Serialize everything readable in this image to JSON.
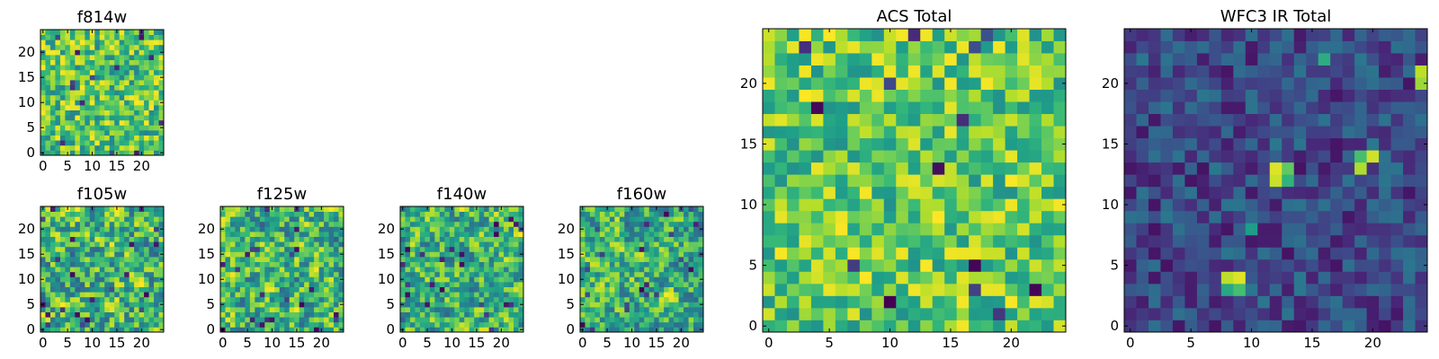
{
  "chart_data": [
    {
      "type": "heatmap",
      "title": "f814w",
      "grid_size": 25,
      "xlim": [
        0,
        24
      ],
      "ylim": [
        0,
        24
      ],
      "x_ticks": [
        "0",
        "5",
        "10",
        "15",
        "20"
      ],
      "y_ticks": [
        "0",
        "5",
        "10",
        "15",
        "20"
      ],
      "colormap": "viridis",
      "style": "noise",
      "seed": 11,
      "value_range": [
        0.45,
        1.0
      ]
    },
    {
      "type": "heatmap",
      "title": "f105w",
      "grid_size": 25,
      "xlim": [
        0,
        24
      ],
      "ylim": [
        0,
        24
      ],
      "x_ticks": [
        "0",
        "5",
        "10",
        "15",
        "20"
      ],
      "y_ticks": [
        "0",
        "5",
        "10",
        "15",
        "20"
      ],
      "colormap": "viridis",
      "style": "smooth",
      "seed": 23,
      "value_range": [
        0.3,
        1.0
      ]
    },
    {
      "type": "heatmap",
      "title": "f125w",
      "grid_size": 25,
      "xlim": [
        0,
        24
      ],
      "ylim": [
        0,
        24
      ],
      "x_ticks": [
        "0",
        "5",
        "10",
        "15",
        "20"
      ],
      "y_ticks": [
        "0",
        "5",
        "10",
        "15",
        "20"
      ],
      "colormap": "viridis",
      "style": "smooth",
      "seed": 37,
      "value_range": [
        0.3,
        1.0
      ]
    },
    {
      "type": "heatmap",
      "title": "f140w",
      "grid_size": 25,
      "xlim": [
        0,
        24
      ],
      "ylim": [
        0,
        24
      ],
      "x_ticks": [
        "0",
        "5",
        "10",
        "15",
        "20"
      ],
      "y_ticks": [
        "0",
        "5",
        "10",
        "15",
        "20"
      ],
      "colormap": "viridis",
      "style": "smooth",
      "seed": 41,
      "value_range": [
        0.3,
        1.0
      ]
    },
    {
      "type": "heatmap",
      "title": "f160w",
      "grid_size": 25,
      "xlim": [
        0,
        24
      ],
      "ylim": [
        0,
        24
      ],
      "x_ticks": [
        "0",
        "5",
        "10",
        "15",
        "20"
      ],
      "y_ticks": [
        "0",
        "5",
        "10",
        "15",
        "20"
      ],
      "colormap": "viridis",
      "style": "smooth",
      "seed": 53,
      "value_range": [
        0.3,
        1.0
      ]
    },
    {
      "type": "heatmap",
      "title": "ACS Total",
      "grid_size": 25,
      "xlim": [
        0,
        24
      ],
      "ylim": [
        0,
        24
      ],
      "x_ticks": [
        "0",
        "5",
        "10",
        "15",
        "20"
      ],
      "y_ticks": [
        "0",
        "5",
        "10",
        "15",
        "20"
      ],
      "colormap": "viridis",
      "style": "noise",
      "seed": 67,
      "value_range": [
        0.5,
        1.0
      ]
    },
    {
      "type": "heatmap",
      "title": "WFC3 IR Total",
      "grid_size": 25,
      "xlim": [
        0,
        24
      ],
      "ylim": [
        0,
        24
      ],
      "x_ticks": [
        "0",
        "5",
        "10",
        "15",
        "20"
      ],
      "y_ticks": [
        "0",
        "5",
        "10",
        "15",
        "20"
      ],
      "colormap": "viridis",
      "style": "dark",
      "seed": 79,
      "value_range": [
        0.05,
        0.4
      ],
      "bright_spots": [
        {
          "x": 8,
          "y": 4,
          "v": 0.9
        },
        {
          "x": 9,
          "y": 4,
          "v": 0.95
        },
        {
          "x": 9,
          "y": 3,
          "v": 0.7
        },
        {
          "x": 8,
          "y": 3,
          "v": 0.6
        },
        {
          "x": 12,
          "y": 12,
          "v": 0.92
        },
        {
          "x": 12,
          "y": 13,
          "v": 0.95
        },
        {
          "x": 13,
          "y": 13,
          "v": 0.75
        },
        {
          "x": 13,
          "y": 12,
          "v": 0.65
        },
        {
          "x": 19,
          "y": 13,
          "v": 0.88
        },
        {
          "x": 20,
          "y": 14,
          "v": 0.93
        },
        {
          "x": 19,
          "y": 14,
          "v": 0.7
        },
        {
          "x": 24,
          "y": 21,
          "v": 0.9
        },
        {
          "x": 24,
          "y": 20,
          "v": 0.85
        },
        {
          "x": 16,
          "y": 22,
          "v": 0.62
        },
        {
          "x": 10,
          "y": 8,
          "v": 0.55
        }
      ]
    }
  ]
}
